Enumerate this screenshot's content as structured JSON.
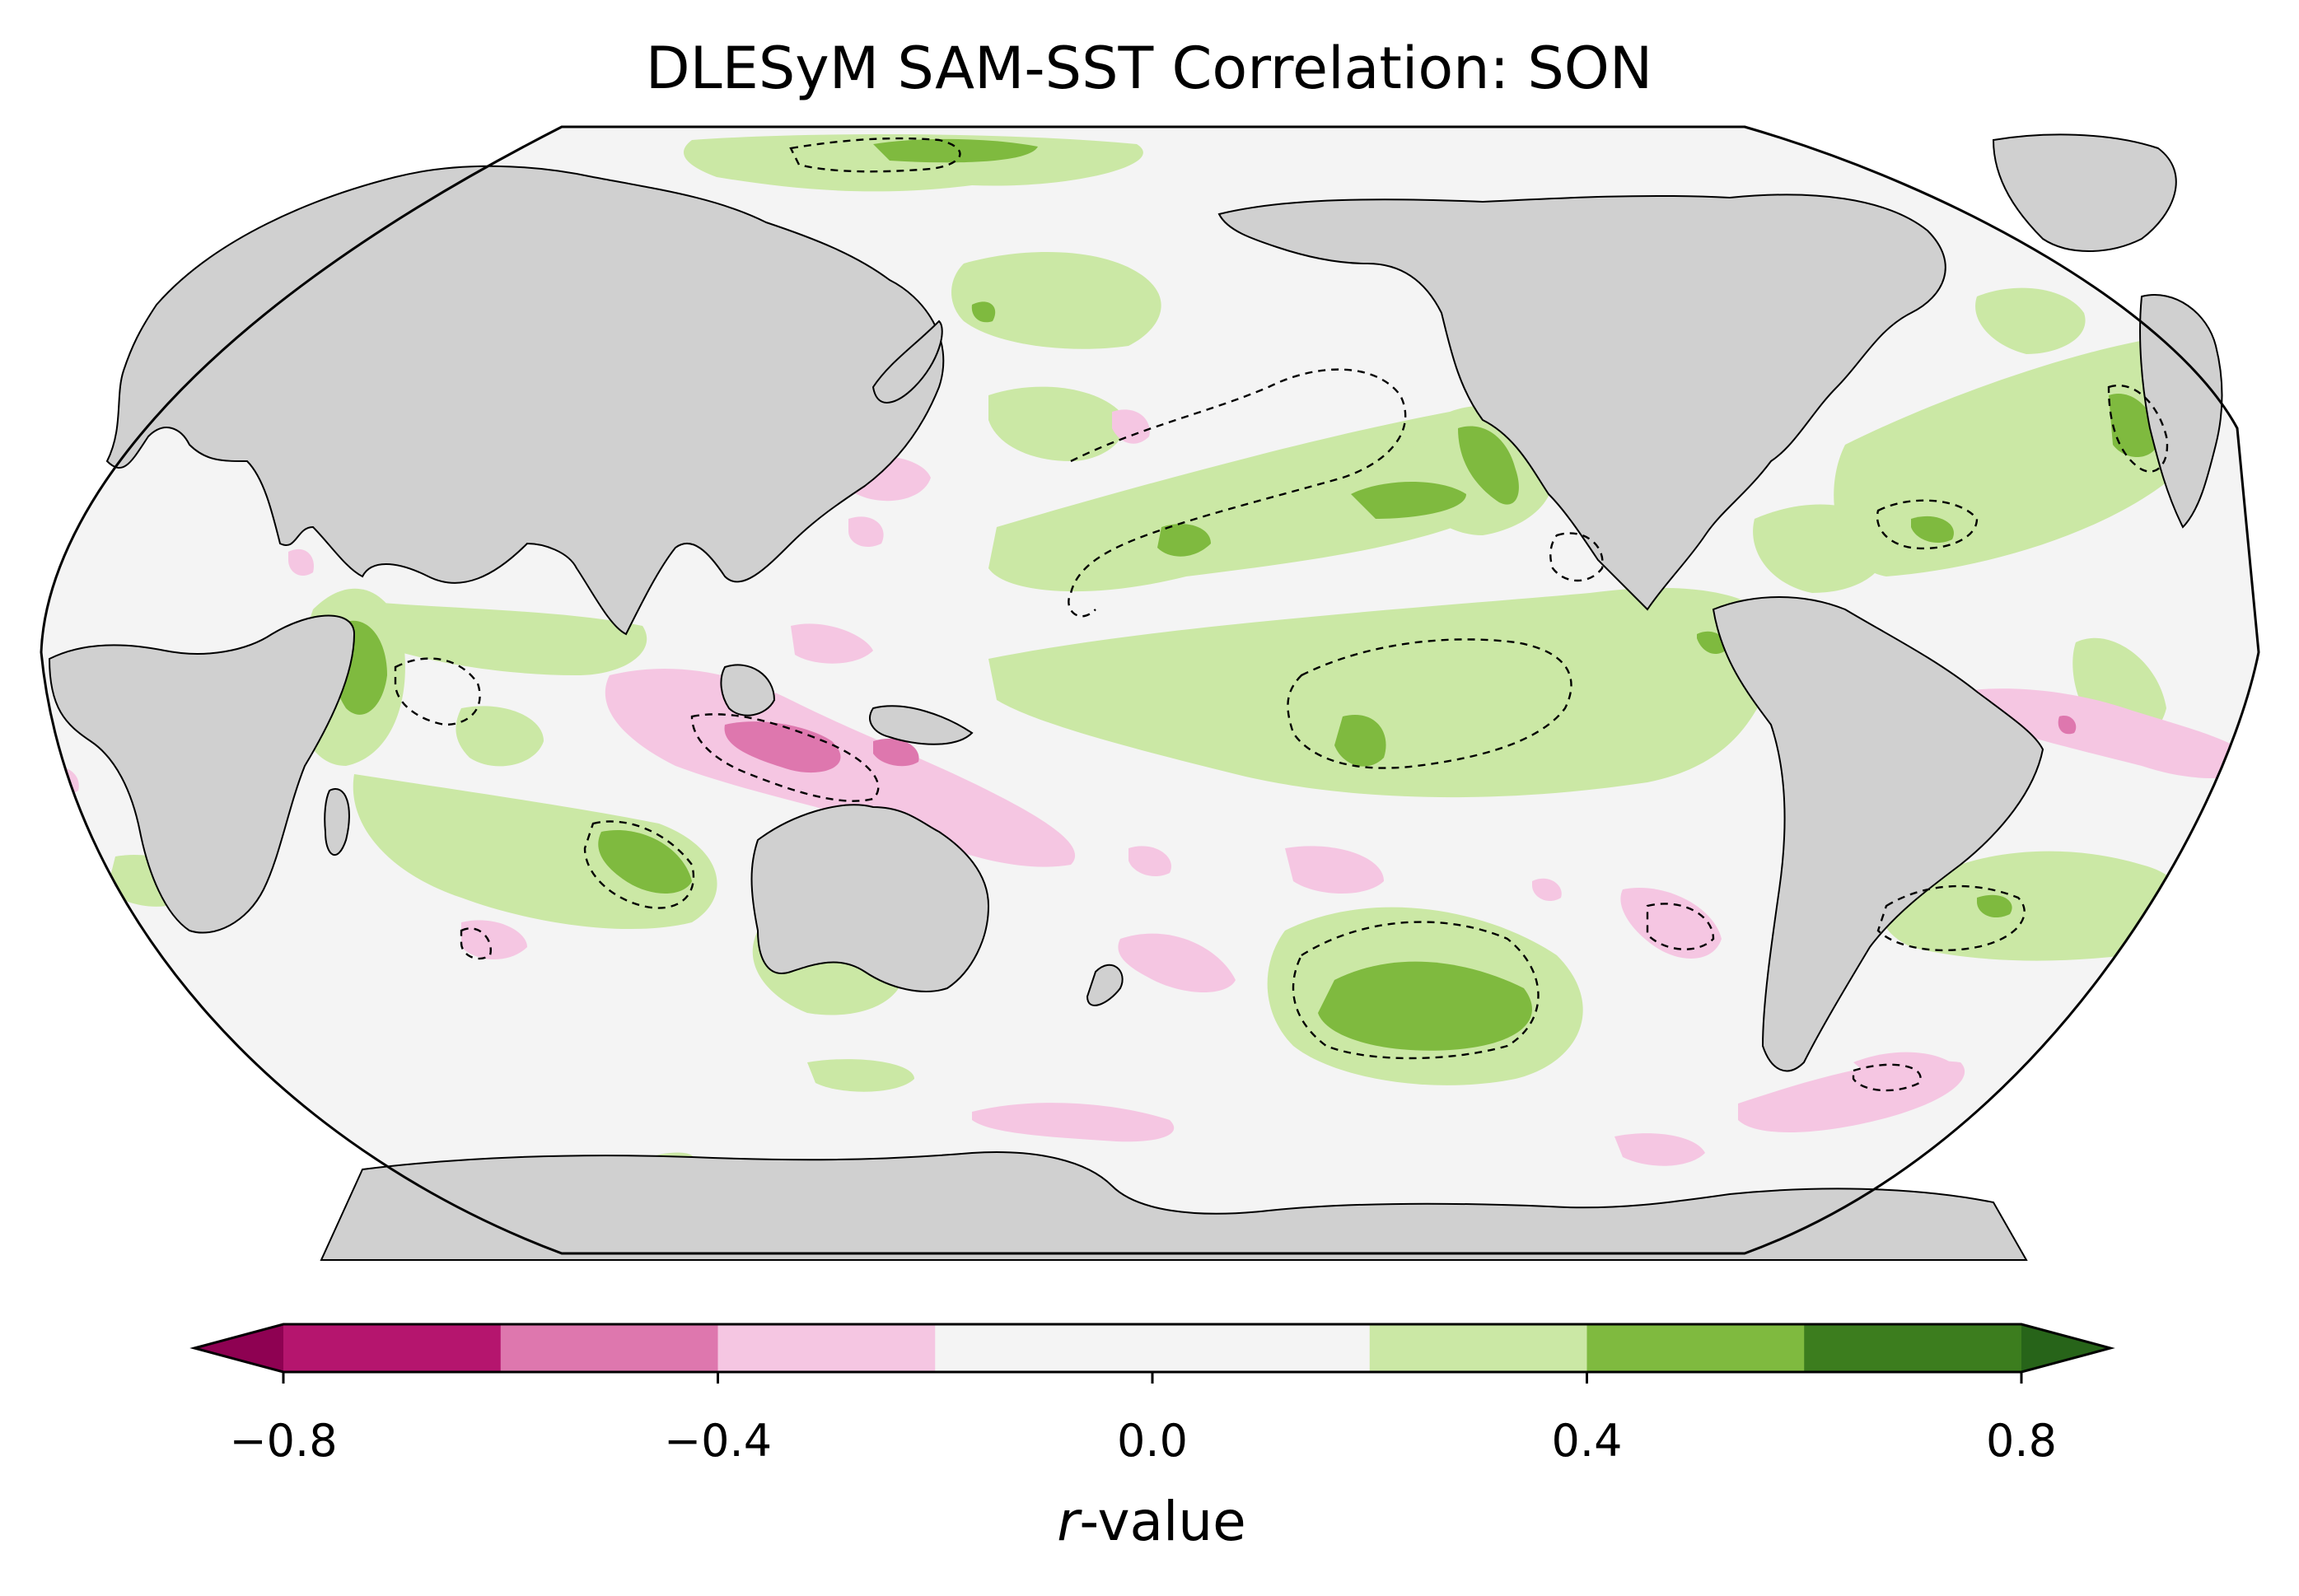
{
  "title": "DLESyM SAM-SST Correlation: SON",
  "colorbar": {
    "label_italic": "r",
    "label_rest": "-value",
    "ticks": [
      "−0.8",
      "−0.4",
      "0.0",
      "0.4",
      "0.8"
    ],
    "tick_values": [
      -0.8,
      -0.4,
      0.0,
      0.4,
      0.8
    ],
    "boundaries": [
      -0.8,
      -0.6,
      -0.4,
      -0.2,
      0.2,
      0.4,
      0.6,
      0.8
    ],
    "extend": "both",
    "colors": {
      "under": "#8e0152",
      "bins": [
        "#b5156e",
        "#de77ae",
        "#f5c6e2",
        "#f4f4f4",
        "#cbe8a5",
        "#7fba3f",
        "#3c7d1e"
      ],
      "over": "#276419"
    }
  },
  "map": {
    "projection": "Robinson",
    "central_longitude": 180,
    "land_color": "#d0d0d0",
    "ocean_neutral_color": "#f4f4f4",
    "significance_contour": "dashed black line"
  }
}
